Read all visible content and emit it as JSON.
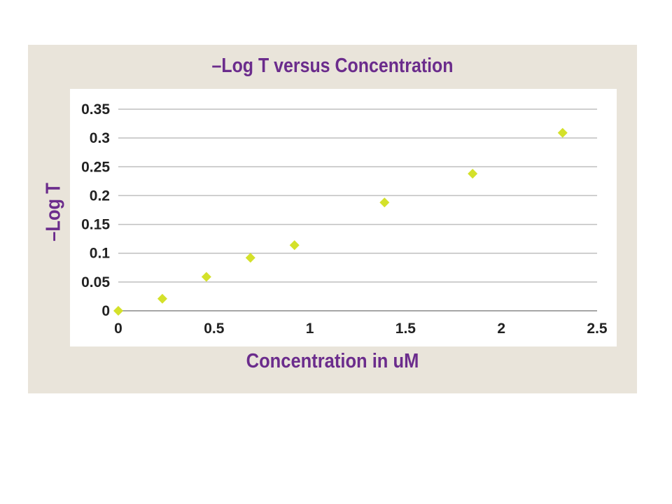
{
  "chart_data": {
    "type": "scatter",
    "title": "–Log T versus Concentration",
    "xlabel": "Concentration in uM",
    "ylabel": "–Log T",
    "xlim": [
      0,
      2.5
    ],
    "ylim": [
      0,
      0.35
    ],
    "x_ticks": [
      0,
      0.5,
      1,
      1.5,
      2,
      2.5
    ],
    "x_tick_labels": [
      "0",
      "0.5",
      "1",
      "1.5",
      "2",
      "2.5"
    ],
    "y_ticks": [
      0,
      0.05,
      0.1,
      0.15,
      0.2,
      0.25,
      0.3,
      0.35
    ],
    "y_tick_labels": [
      "0",
      "0.05",
      "0.1",
      "0.15",
      "0.2",
      "0.25",
      "0.3",
      "0.35"
    ],
    "grid": "horizontal",
    "legend": "none",
    "marker": "diamond",
    "series": [
      {
        "x": [
          0,
          0.23,
          0.46,
          0.69,
          0.92,
          1.39,
          1.85,
          2.32
        ],
        "y": [
          0,
          0.021,
          0.059,
          0.092,
          0.114,
          0.188,
          0.238,
          0.309
        ]
      }
    ],
    "colors": {
      "marker": "#d4e12a",
      "title": "#6b2c8c",
      "frame": "#e9e4da",
      "grid": "#bfbfbf"
    }
  }
}
